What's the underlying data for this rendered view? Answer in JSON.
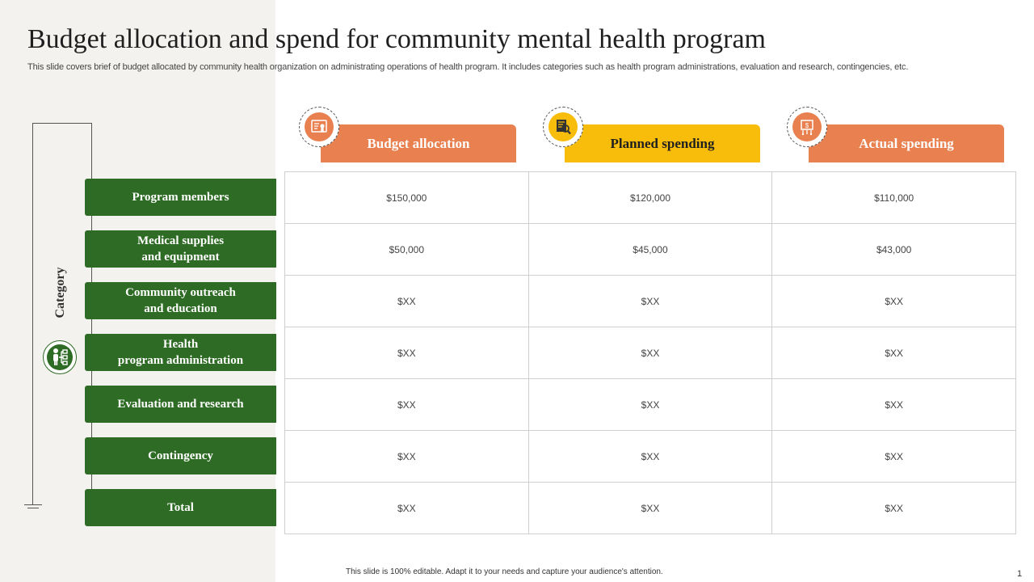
{
  "slide": {
    "title": "Budget allocation and spend for community mental health program",
    "subtitle": "This slide covers brief of budget allocated by community health organization on administrating operations of health program. It includes categories such as health program administrations, evaluation and research, contingencies, etc.",
    "footer_note": "This slide is 100% editable. Adapt it to your needs and capture your audience's attention.",
    "page_number": "1"
  },
  "category": {
    "label": "Category",
    "icon": "org-chart-person-icon"
  },
  "columns": [
    {
      "label": "Budget allocation",
      "icon": "certificate-icon",
      "color": "#e8804f",
      "text_color": "#ffffff"
    },
    {
      "label": "Planned spending",
      "icon": "document-search-icon",
      "color": "#f8bd0a",
      "text_color": "#1f1f1f"
    },
    {
      "label": "Actual spending",
      "icon": "money-bag-icon",
      "color": "#e8804f",
      "text_color": "#ffffff"
    }
  ],
  "rows": [
    {
      "label": "Program  members",
      "values": [
        "$150,000",
        "$120,000",
        "$110,000"
      ]
    },
    {
      "label": "Medical supplies\nand  equipment",
      "values": [
        "$50,000",
        "$45,000",
        "$43,000"
      ]
    },
    {
      "label": "Community  outreach\nand education",
      "values": [
        "$XX",
        "$XX",
        "$XX"
      ]
    },
    {
      "label": "Health\nprogram  administration",
      "values": [
        "$XX",
        "$XX",
        "$XX"
      ]
    },
    {
      "label": "Evaluation  and research",
      "values": [
        "$XX",
        "$XX",
        "$XX"
      ]
    },
    {
      "label": "Contingency",
      "values": [
        "$XX",
        "$XX",
        "$XX"
      ]
    },
    {
      "label": "Total",
      "values": [
        "$XX",
        "$XX",
        "$XX"
      ]
    }
  ],
  "colors": {
    "accent_green": "#2e6b24",
    "accent_orange": "#e8804f",
    "accent_yellow": "#f8bd0a",
    "left_panel": "#f3f2ee"
  }
}
